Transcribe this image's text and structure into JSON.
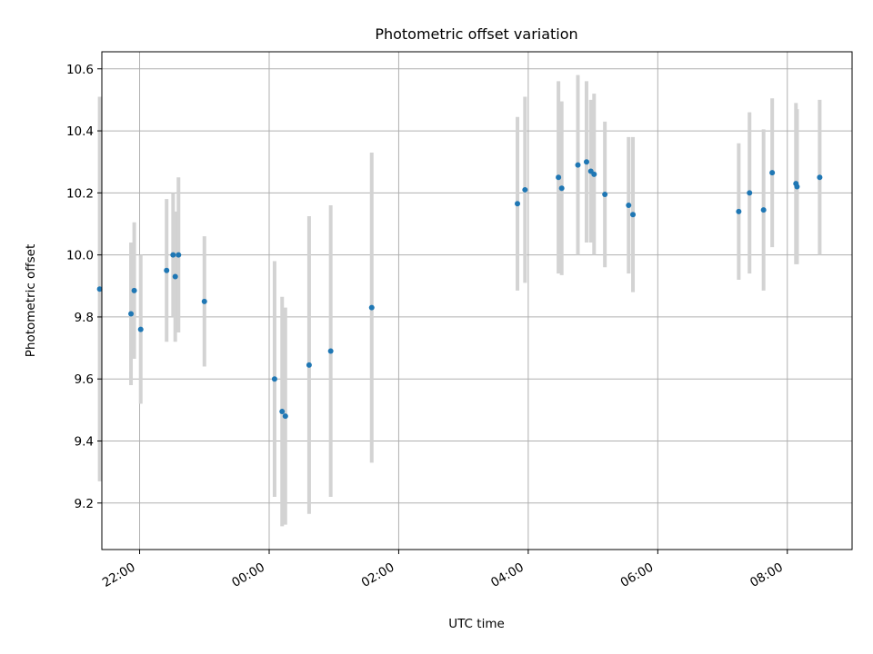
{
  "chart_data": {
    "type": "scatter",
    "title": "Photometric offset variation",
    "xlabel": "UTC time",
    "ylabel": "Photometric offset",
    "xlim": [
      "21:25",
      "09:00"
    ],
    "ylim": [
      9.05,
      10.655
    ],
    "x_ticks": [
      "22:00",
      "00:00",
      "02:00",
      "04:00",
      "06:00",
      "08:00"
    ],
    "y_ticks": [
      "9.2",
      "9.4",
      "9.6",
      "9.8",
      "10.0",
      "10.2",
      "10.4",
      "10.6"
    ],
    "grid": true,
    "colors": {
      "point": "#1f77b4",
      "errorbar": "#d3d3d3",
      "grid": "#b0b0b0"
    },
    "series": [
      {
        "points": [
          {
            "x": "21:23",
            "y": 9.89,
            "err": 0.62
          },
          {
            "x": "21:52",
            "y": 9.81,
            "err": 0.23
          },
          {
            "x": "21:55",
            "y": 9.885,
            "err": 0.22
          },
          {
            "x": "22:01",
            "y": 9.76,
            "err": 0.24
          },
          {
            "x": "22:25",
            "y": 9.95,
            "err": 0.23
          },
          {
            "x": "22:31",
            "y": 10.0,
            "err": 0.2
          },
          {
            "x": "22:33",
            "y": 9.93,
            "err": 0.21
          },
          {
            "x": "22:36",
            "y": 10.0,
            "err": 0.25
          },
          {
            "x": "23:00",
            "y": 9.85,
            "err": 0.21
          },
          {
            "x": "00:05",
            "y": 9.6,
            "err": 0.38
          },
          {
            "x": "00:12",
            "y": 9.495,
            "err": 0.37
          },
          {
            "x": "00:15",
            "y": 9.48,
            "err": 0.35
          },
          {
            "x": "00:37",
            "y": 9.645,
            "err": 0.48
          },
          {
            "x": "00:57",
            "y": 9.69,
            "err": 0.47
          },
          {
            "x": "01:35",
            "y": 9.83,
            "err": 0.5
          },
          {
            "x": "03:50",
            "y": 10.165,
            "err": 0.28
          },
          {
            "x": "03:57",
            "y": 10.21,
            "err": 0.3
          },
          {
            "x": "04:28",
            "y": 10.25,
            "err": 0.31
          },
          {
            "x": "04:31",
            "y": 10.215,
            "err": 0.28
          },
          {
            "x": "04:46",
            "y": 10.29,
            "err": 0.29
          },
          {
            "x": "04:54",
            "y": 10.3,
            "err": 0.26
          },
          {
            "x": "04:58",
            "y": 10.27,
            "err": 0.23
          },
          {
            "x": "05:01",
            "y": 10.26,
            "err": 0.26
          },
          {
            "x": "05:11",
            "y": 10.195,
            "err": 0.235
          },
          {
            "x": "05:33",
            "y": 10.16,
            "err": 0.22
          },
          {
            "x": "05:37",
            "y": 10.13,
            "err": 0.25
          },
          {
            "x": "07:15",
            "y": 10.14,
            "err": 0.22
          },
          {
            "x": "07:25",
            "y": 10.2,
            "err": 0.26
          },
          {
            "x": "07:38",
            "y": 10.145,
            "err": 0.26
          },
          {
            "x": "07:46",
            "y": 10.265,
            "err": 0.24
          },
          {
            "x": "08:08",
            "y": 10.23,
            "err": 0.26
          },
          {
            "x": "08:09",
            "y": 10.22,
            "err": 0.25
          },
          {
            "x": "08:30",
            "y": 10.25,
            "err": 0.25
          }
        ]
      }
    ]
  }
}
